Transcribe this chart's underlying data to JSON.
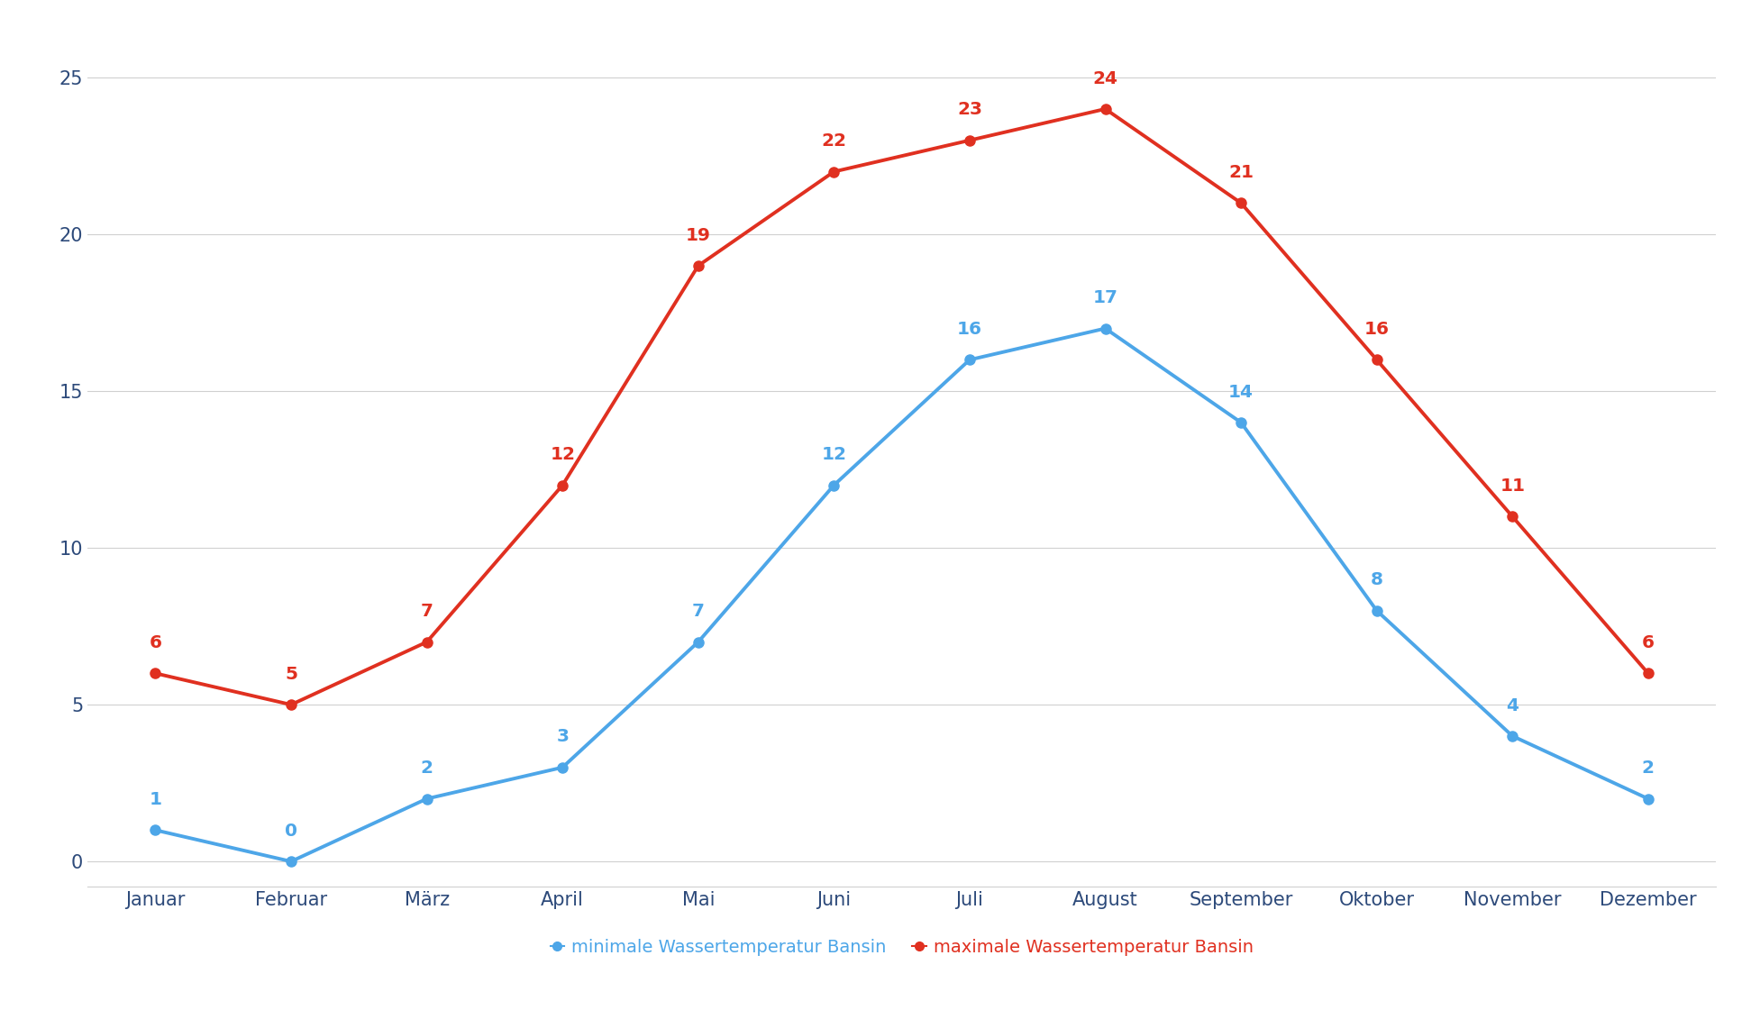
{
  "months": [
    "Januar",
    "Februar",
    "März",
    "April",
    "Mai",
    "Juni",
    "Juli",
    "August",
    "September",
    "Oktober",
    "November",
    "Dezember"
  ],
  "min_temps": [
    1,
    0,
    2,
    3,
    7,
    12,
    16,
    17,
    14,
    8,
    4,
    2
  ],
  "max_temps": [
    6,
    5,
    7,
    12,
    19,
    22,
    23,
    24,
    21,
    16,
    11,
    6
  ],
  "min_color": "#4da6e8",
  "max_color": "#e03020",
  "min_label": "minimale Wassertemperatur Bansin",
  "max_label": "maximale Wassertemperatur Bansin",
  "ylim": [
    -0.8,
    26.5
  ],
  "yticks": [
    0,
    5,
    10,
    15,
    20,
    25
  ],
  "background_color": "#ffffff",
  "grid_color": "#d0d0d0",
  "tick_label_color": "#2d4a7a",
  "line_width": 2.8,
  "marker_size": 8,
  "annotation_fontsize": 14.5,
  "legend_fontsize": 14,
  "tick_fontsize": 15
}
